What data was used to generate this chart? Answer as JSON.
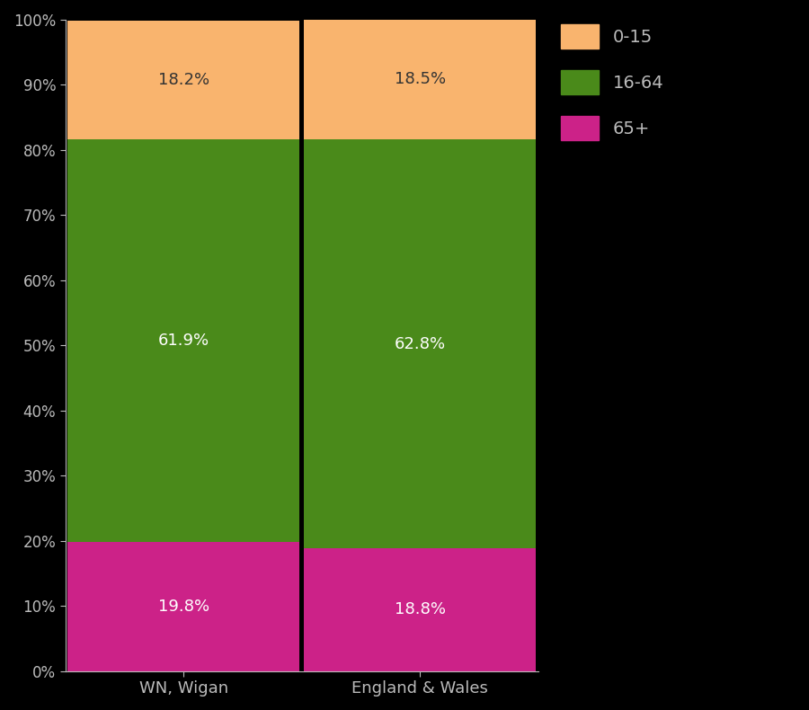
{
  "categories": [
    "WN, Wigan",
    "England & Wales"
  ],
  "segments": {
    "65+": [
      19.8,
      18.8
    ],
    "16-64": [
      61.9,
      62.8
    ],
    "0-15": [
      18.2,
      18.5
    ]
  },
  "colors": {
    "65+": "#cc2288",
    "16-64": "#4a8a1a",
    "0-15": "#f9b46e"
  },
  "label_colors": {
    "65+": "white",
    "16-64": "white",
    "0-15": "#333333"
  },
  "legend_order": [
    "0-15",
    "16-64",
    "65+"
  ],
  "background_color": "#000000",
  "text_color": "#bbbbbb",
  "ytick_labels": [
    "0%",
    "10%",
    "20%",
    "30%",
    "40%",
    "50%",
    "60%",
    "70%",
    "80%",
    "90%",
    "100%"
  ],
  "ytick_values": [
    0,
    10,
    20,
    30,
    40,
    50,
    60,
    70,
    80,
    90,
    100
  ],
  "bar_width": 0.98,
  "figsize": [
    9.0,
    7.9
  ],
  "dpi": 100
}
